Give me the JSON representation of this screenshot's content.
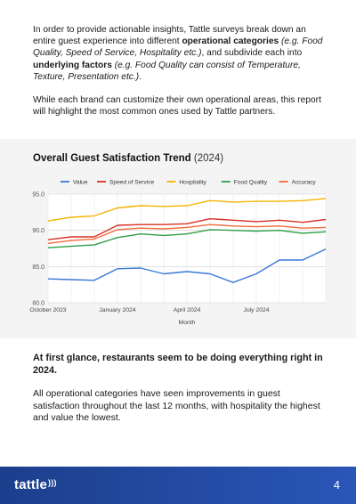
{
  "intro": {
    "p1": [
      {
        "t": "In order to provide actionable insights, Tattle surveys break down an entire guest experience into different ",
        "s": "n"
      },
      {
        "t": "operational categories",
        "s": "b"
      },
      {
        "t": " ",
        "s": "n"
      },
      {
        "t": "(e.g. Food Quality, Speed of Service, Hospitality etc.)",
        "s": "i"
      },
      {
        "t": ", and subdivide each into ",
        "s": "n"
      },
      {
        "t": "underlying factors",
        "s": "b"
      },
      {
        "t": " ",
        "s": "n"
      },
      {
        "t": "(e.g. Food Quality can consist of Temperature, Texture, Presentation etc.)",
        "s": "i"
      },
      {
        "t": ".",
        "s": "n"
      }
    ],
    "p2": "While each brand can customize their own operational areas, this report will highlight the most common ones used by Tattle partners."
  },
  "chart": {
    "title_main": "Overall Guest Satisfaction Trend",
    "title_year": "(2024)"
  },
  "chart_data": {
    "type": "line",
    "title": "Overall Guest Satisfaction Trend (2024)",
    "xlabel": "Month",
    "ylabel": "",
    "ylim": [
      80,
      95
    ],
    "yticks": [
      80,
      85,
      90,
      95
    ],
    "xticks": [
      {
        "label": "October 2023",
        "i": 0
      },
      {
        "label": "January 2024",
        "i": 3
      },
      {
        "label": "April 2024",
        "i": 6
      },
      {
        "label": "July 2024",
        "i": 9
      }
    ],
    "x": [
      "Oct 2023",
      "Nov 2023",
      "Dec 2023",
      "Jan 2024",
      "Feb 2024",
      "Mar 2024",
      "Apr 2024",
      "May 2024",
      "Jun 2024",
      "Jul 2024",
      "Aug 2024",
      "Sep 2024",
      "Oct 2024"
    ],
    "grid": true,
    "legend": "top",
    "series": [
      {
        "name": "Value",
        "color": "#3b78d8",
        "values": [
          83.3,
          83.2,
          83.1,
          84.7,
          84.8,
          84.0,
          84.3,
          84.0,
          82.8,
          84.0,
          85.9,
          85.9,
          87.4
        ]
      },
      {
        "name": "Speed of Service",
        "color": "#d93025",
        "values": [
          88.7,
          89.1,
          89.1,
          90.7,
          90.8,
          90.8,
          90.9,
          91.6,
          91.4,
          91.2,
          91.4,
          91.1,
          91.5
        ]
      },
      {
        "name": "Hospitality",
        "color": "#f4b400",
        "values": [
          91.3,
          91.8,
          92.0,
          93.1,
          93.4,
          93.3,
          93.4,
          94.1,
          93.9,
          94.0,
          94.0,
          94.1,
          94.4
        ]
      },
      {
        "name": "Food Quality",
        "color": "#2e9e44",
        "values": [
          87.6,
          87.8,
          88.0,
          89.0,
          89.5,
          89.3,
          89.5,
          90.1,
          90.0,
          89.9,
          90.0,
          89.6,
          89.8
        ]
      },
      {
        "name": "Accuracy",
        "color": "#f26b3a",
        "values": [
          88.2,
          88.6,
          88.8,
          90.1,
          90.3,
          90.2,
          90.4,
          90.8,
          90.6,
          90.5,
          90.6,
          90.3,
          90.4
        ]
      }
    ]
  },
  "finding": {
    "heading": "At first glance, restaurants seem to be doing everything right in 2024.",
    "body": "All operational categories have seen improvements in guest satisfaction throughout the last 12 months, with hospitality the highest and value the lowest."
  },
  "footer": {
    "logo": "tattle",
    "page_number": "4"
  }
}
